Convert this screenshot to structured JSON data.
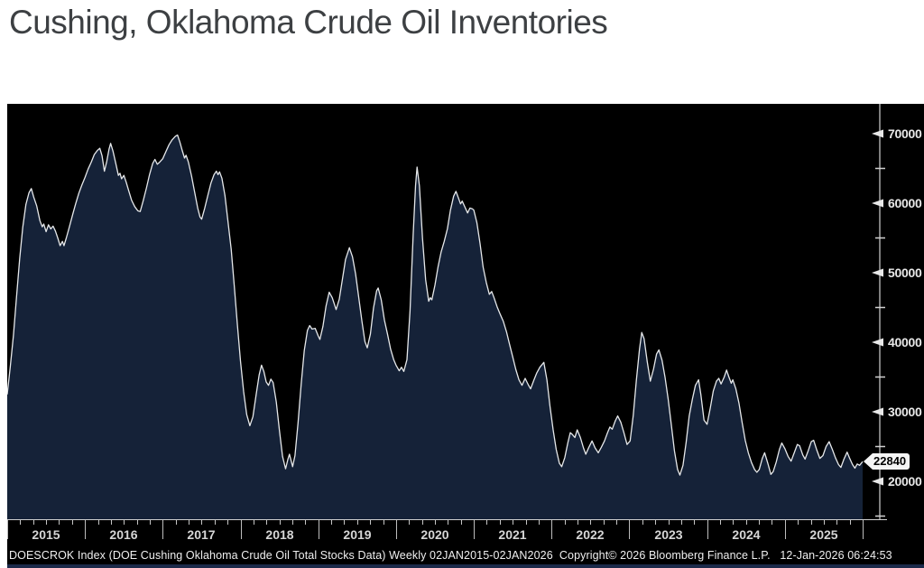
{
  "title": "Cushing, Oklahoma Crude Oil Inventories",
  "footer": {
    "text": "DOESCROK Index (DOE Cushing Oklahoma Crude Oil Total Stocks Data) Weekly 02JAN2015-02JAN2026  Copyright© 2026 Bloomberg Finance L.P.   12-Jan-2026 06:24:53"
  },
  "colors": {
    "panel_background": "#000000",
    "area_fill": "#152238",
    "line": "#e6e8ea",
    "axis": "#d0d0d0",
    "tick_label": "#e8e8e8",
    "badge_bg": "#f5f5f5",
    "badge_text": "#000000",
    "title_text": "#3d4043",
    "footer_text": "#efefef",
    "bottom_strip": "#1c2a4a"
  },
  "chart_data": {
    "type": "area",
    "title": "Cushing, Oklahoma Crude Oil Inventories",
    "series_name": "DOESCROK Index (DOE Cushing Oklahoma Crude Oil Total Stocks Data)",
    "frequency": "Weekly",
    "date_range": "02JAN2015-02JAN2026",
    "last_value": 22840,
    "last_value_label": "22840",
    "xlabel": "",
    "ylabel": "",
    "xlim": [
      2015.0,
      2026.0
    ],
    "ylim": [
      14500,
      74300
    ],
    "grid": false,
    "legend": "none",
    "y_ticks_major": [
      70000,
      60000,
      50000,
      40000,
      30000,
      20000
    ],
    "y_ticks_minor": [
      65000,
      55000,
      45000,
      35000,
      25000,
      15000
    ],
    "x_years": [
      "2015",
      "2016",
      "2017",
      "2018",
      "2019",
      "2020",
      "2021",
      "2022",
      "2023",
      "2024",
      "2025"
    ],
    "points": [
      [
        2015.0,
        32500
      ],
      [
        2015.04,
        36500
      ],
      [
        2015.08,
        41000
      ],
      [
        2015.12,
        46500
      ],
      [
        2015.16,
        52000
      ],
      [
        2015.2,
        56500
      ],
      [
        2015.24,
        59800
      ],
      [
        2015.28,
        61500
      ],
      [
        2015.31,
        62100
      ],
      [
        2015.34,
        60900
      ],
      [
        2015.38,
        59600
      ],
      [
        2015.42,
        57500
      ],
      [
        2015.45,
        56600
      ],
      [
        2015.47,
        57000
      ],
      [
        2015.5,
        55900
      ],
      [
        2015.53,
        56900
      ],
      [
        2015.56,
        56300
      ],
      [
        2015.59,
        56700
      ],
      [
        2015.62,
        56000
      ],
      [
        2015.65,
        55000
      ],
      [
        2015.68,
        53900
      ],
      [
        2015.71,
        54500
      ],
      [
        2015.73,
        53900
      ],
      [
        2015.76,
        55000
      ],
      [
        2015.8,
        56600
      ],
      [
        2015.84,
        58300
      ],
      [
        2015.88,
        59900
      ],
      [
        2015.92,
        61400
      ],
      [
        2015.96,
        62600
      ],
      [
        2016.0,
        63700
      ],
      [
        2016.04,
        64900
      ],
      [
        2016.08,
        65900
      ],
      [
        2016.12,
        67000
      ],
      [
        2016.16,
        67600
      ],
      [
        2016.19,
        67900
      ],
      [
        2016.22,
        66800
      ],
      [
        2016.25,
        64600
      ],
      [
        2016.28,
        66000
      ],
      [
        2016.31,
        67800
      ],
      [
        2016.33,
        68600
      ],
      [
        2016.36,
        67500
      ],
      [
        2016.4,
        65500
      ],
      [
        2016.43,
        64000
      ],
      [
        2016.45,
        64300
      ],
      [
        2016.47,
        63500
      ],
      [
        2016.5,
        64000
      ],
      [
        2016.53,
        63000
      ],
      [
        2016.56,
        61900
      ],
      [
        2016.6,
        60400
      ],
      [
        2016.64,
        59500
      ],
      [
        2016.68,
        58900
      ],
      [
        2016.71,
        58800
      ],
      [
        2016.75,
        60400
      ],
      [
        2016.79,
        62200
      ],
      [
        2016.83,
        64100
      ],
      [
        2016.87,
        65700
      ],
      [
        2016.9,
        66300
      ],
      [
        2016.93,
        65600
      ],
      [
        2016.96,
        65900
      ],
      [
        2017.0,
        66400
      ],
      [
        2017.04,
        67400
      ],
      [
        2017.08,
        68400
      ],
      [
        2017.12,
        69100
      ],
      [
        2017.16,
        69600
      ],
      [
        2017.19,
        69800
      ],
      [
        2017.22,
        68800
      ],
      [
        2017.25,
        67600
      ],
      [
        2017.28,
        66500
      ],
      [
        2017.3,
        66900
      ],
      [
        2017.33,
        65900
      ],
      [
        2017.37,
        63900
      ],
      [
        2017.41,
        61600
      ],
      [
        2017.45,
        59300
      ],
      [
        2017.48,
        58000
      ],
      [
        2017.5,
        57700
      ],
      [
        2017.54,
        59300
      ],
      [
        2017.58,
        61100
      ],
      [
        2017.62,
        62900
      ],
      [
        2017.66,
        64100
      ],
      [
        2017.69,
        64600
      ],
      [
        2017.71,
        64100
      ],
      [
        2017.73,
        64500
      ],
      [
        2017.76,
        63600
      ],
      [
        2017.8,
        61100
      ],
      [
        2017.84,
        57200
      ],
      [
        2017.88,
        53400
      ],
      [
        2017.92,
        48000
      ],
      [
        2017.96,
        42500
      ],
      [
        2018.0,
        37300
      ],
      [
        2018.04,
        32900
      ],
      [
        2018.08,
        29600
      ],
      [
        2018.12,
        28000
      ],
      [
        2018.16,
        29300
      ],
      [
        2018.2,
        32400
      ],
      [
        2018.24,
        35300
      ],
      [
        2018.27,
        36700
      ],
      [
        2018.3,
        35800
      ],
      [
        2018.33,
        34300
      ],
      [
        2018.36,
        33800
      ],
      [
        2018.39,
        34700
      ],
      [
        2018.42,
        34200
      ],
      [
        2018.46,
        31400
      ],
      [
        2018.5,
        27400
      ],
      [
        2018.54,
        23600
      ],
      [
        2018.58,
        21800
      ],
      [
        2018.61,
        23200
      ],
      [
        2018.63,
        23900
      ],
      [
        2018.67,
        22100
      ],
      [
        2018.7,
        23700
      ],
      [
        2018.74,
        28400
      ],
      [
        2018.78,
        34000
      ],
      [
        2018.82,
        38800
      ],
      [
        2018.86,
        41700
      ],
      [
        2018.89,
        42400
      ],
      [
        2018.92,
        41900
      ],
      [
        2018.96,
        42000
      ],
      [
        2019.0,
        40900
      ],
      [
        2019.02,
        40400
      ],
      [
        2019.06,
        42300
      ],
      [
        2019.1,
        45200
      ],
      [
        2019.14,
        47200
      ],
      [
        2019.18,
        46400
      ],
      [
        2019.23,
        44700
      ],
      [
        2019.27,
        46200
      ],
      [
        2019.31,
        49000
      ],
      [
        2019.35,
        51900
      ],
      [
        2019.4,
        53600
      ],
      [
        2019.44,
        52300
      ],
      [
        2019.48,
        49800
      ],
      [
        2019.52,
        46500
      ],
      [
        2019.56,
        43100
      ],
      [
        2019.6,
        40100
      ],
      [
        2019.63,
        39200
      ],
      [
        2019.67,
        41200
      ],
      [
        2019.71,
        44900
      ],
      [
        2019.75,
        47400
      ],
      [
        2019.77,
        47800
      ],
      [
        2019.81,
        46100
      ],
      [
        2019.85,
        43200
      ],
      [
        2019.89,
        41200
      ],
      [
        2019.93,
        39000
      ],
      [
        2019.97,
        37500
      ],
      [
        2020.0,
        36700
      ],
      [
        2020.04,
        35900
      ],
      [
        2020.07,
        36400
      ],
      [
        2020.1,
        35800
      ],
      [
        2020.14,
        37500
      ],
      [
        2020.18,
        44500
      ],
      [
        2020.22,
        55500
      ],
      [
        2020.25,
        62500
      ],
      [
        2020.27,
        65200
      ],
      [
        2020.3,
        62500
      ],
      [
        2020.34,
        55000
      ],
      [
        2020.38,
        49000
      ],
      [
        2020.42,
        45900
      ],
      [
        2020.44,
        46400
      ],
      [
        2020.46,
        46100
      ],
      [
        2020.5,
        48200
      ],
      [
        2020.54,
        50800
      ],
      [
        2020.58,
        53000
      ],
      [
        2020.62,
        54500
      ],
      [
        2020.66,
        56300
      ],
      [
        2020.7,
        59000
      ],
      [
        2020.74,
        61000
      ],
      [
        2020.77,
        61700
      ],
      [
        2020.8,
        60800
      ],
      [
        2020.83,
        59900
      ],
      [
        2020.85,
        60300
      ],
      [
        2020.88,
        59600
      ],
      [
        2020.92,
        58600
      ],
      [
        2020.95,
        59300
      ],
      [
        2020.98,
        59200
      ],
      [
        2021.0,
        59000
      ],
      [
        2021.04,
        57200
      ],
      [
        2021.08,
        54200
      ],
      [
        2021.12,
        50800
      ],
      [
        2021.16,
        48600
      ],
      [
        2021.2,
        46900
      ],
      [
        2021.23,
        47300
      ],
      [
        2021.26,
        46400
      ],
      [
        2021.3,
        45100
      ],
      [
        2021.34,
        44000
      ],
      [
        2021.38,
        43000
      ],
      [
        2021.42,
        41500
      ],
      [
        2021.46,
        39700
      ],
      [
        2021.5,
        37900
      ],
      [
        2021.54,
        36100
      ],
      [
        2021.58,
        34600
      ],
      [
        2021.62,
        33800
      ],
      [
        2021.66,
        34800
      ],
      [
        2021.7,
        33900
      ],
      [
        2021.73,
        33300
      ],
      [
        2021.77,
        34500
      ],
      [
        2021.81,
        35600
      ],
      [
        2021.85,
        36400
      ],
      [
        2021.9,
        37100
      ],
      [
        2021.94,
        34600
      ],
      [
        2021.98,
        30800
      ],
      [
        2022.02,
        27400
      ],
      [
        2022.06,
        24600
      ],
      [
        2022.1,
        22600
      ],
      [
        2022.13,
        22100
      ],
      [
        2022.17,
        23400
      ],
      [
        2022.21,
        25600
      ],
      [
        2022.24,
        27000
      ],
      [
        2022.27,
        26700
      ],
      [
        2022.3,
        26300
      ],
      [
        2022.33,
        27400
      ],
      [
        2022.37,
        26300
      ],
      [
        2022.41,
        24800
      ],
      [
        2022.44,
        23900
      ],
      [
        2022.48,
        24900
      ],
      [
        2022.52,
        25800
      ],
      [
        2022.56,
        24800
      ],
      [
        2022.6,
        24100
      ],
      [
        2022.64,
        24900
      ],
      [
        2022.68,
        25800
      ],
      [
        2022.72,
        27000
      ],
      [
        2022.75,
        27800
      ],
      [
        2022.78,
        27500
      ],
      [
        2022.82,
        28700
      ],
      [
        2022.85,
        29400
      ],
      [
        2022.89,
        28500
      ],
      [
        2022.93,
        27000
      ],
      [
        2022.97,
        25300
      ],
      [
        2023.01,
        25800
      ],
      [
        2023.05,
        29500
      ],
      [
        2023.09,
        34500
      ],
      [
        2023.13,
        39000
      ],
      [
        2023.16,
        41400
      ],
      [
        2023.19,
        40500
      ],
      [
        2023.23,
        37200
      ],
      [
        2023.27,
        34400
      ],
      [
        2023.31,
        36100
      ],
      [
        2023.35,
        38300
      ],
      [
        2023.38,
        38900
      ],
      [
        2023.42,
        37400
      ],
      [
        2023.46,
        34900
      ],
      [
        2023.5,
        31800
      ],
      [
        2023.54,
        28100
      ],
      [
        2023.58,
        24400
      ],
      [
        2023.62,
        21700
      ],
      [
        2023.65,
        20900
      ],
      [
        2023.69,
        22300
      ],
      [
        2023.73,
        25600
      ],
      [
        2023.77,
        29400
      ],
      [
        2023.81,
        31800
      ],
      [
        2023.85,
        33800
      ],
      [
        2023.89,
        34600
      ],
      [
        2023.92,
        32500
      ],
      [
        2023.96,
        28800
      ],
      [
        2024.0,
        28200
      ],
      [
        2024.04,
        30500
      ],
      [
        2024.08,
        33000
      ],
      [
        2024.12,
        34400
      ],
      [
        2024.15,
        34800
      ],
      [
        2024.18,
        34000
      ],
      [
        2024.22,
        35000
      ],
      [
        2024.25,
        36000
      ],
      [
        2024.28,
        35000
      ],
      [
        2024.31,
        34100
      ],
      [
        2024.33,
        34600
      ],
      [
        2024.37,
        33300
      ],
      [
        2024.41,
        31200
      ],
      [
        2024.45,
        28500
      ],
      [
        2024.49,
        25900
      ],
      [
        2024.53,
        24100
      ],
      [
        2024.57,
        22700
      ],
      [
        2024.61,
        21700
      ],
      [
        2024.64,
        21300
      ],
      [
        2024.67,
        21700
      ],
      [
        2024.71,
        23300
      ],
      [
        2024.74,
        24100
      ],
      [
        2024.78,
        22600
      ],
      [
        2024.82,
        21000
      ],
      [
        2024.85,
        21400
      ],
      [
        2024.89,
        22800
      ],
      [
        2024.93,
        24600
      ],
      [
        2024.96,
        25500
      ],
      [
        2025.0,
        24700
      ],
      [
        2025.04,
        23600
      ],
      [
        2025.08,
        22900
      ],
      [
        2025.12,
        24100
      ],
      [
        2025.16,
        25300
      ],
      [
        2025.19,
        25100
      ],
      [
        2025.23,
        23800
      ],
      [
        2025.26,
        23200
      ],
      [
        2025.3,
        24400
      ],
      [
        2025.34,
        25700
      ],
      [
        2025.37,
        25900
      ],
      [
        2025.41,
        24500
      ],
      [
        2025.45,
        23300
      ],
      [
        2025.49,
        23700
      ],
      [
        2025.53,
        25000
      ],
      [
        2025.57,
        25700
      ],
      [
        2025.61,
        24600
      ],
      [
        2025.65,
        23400
      ],
      [
        2025.69,
        22400
      ],
      [
        2025.72,
        22000
      ],
      [
        2025.76,
        23200
      ],
      [
        2025.8,
        24200
      ],
      [
        2025.83,
        23400
      ],
      [
        2025.87,
        22400
      ],
      [
        2025.9,
        21900
      ],
      [
        2025.93,
        22500
      ],
      [
        2025.96,
        22300
      ],
      [
        2026.0,
        22840
      ]
    ]
  }
}
